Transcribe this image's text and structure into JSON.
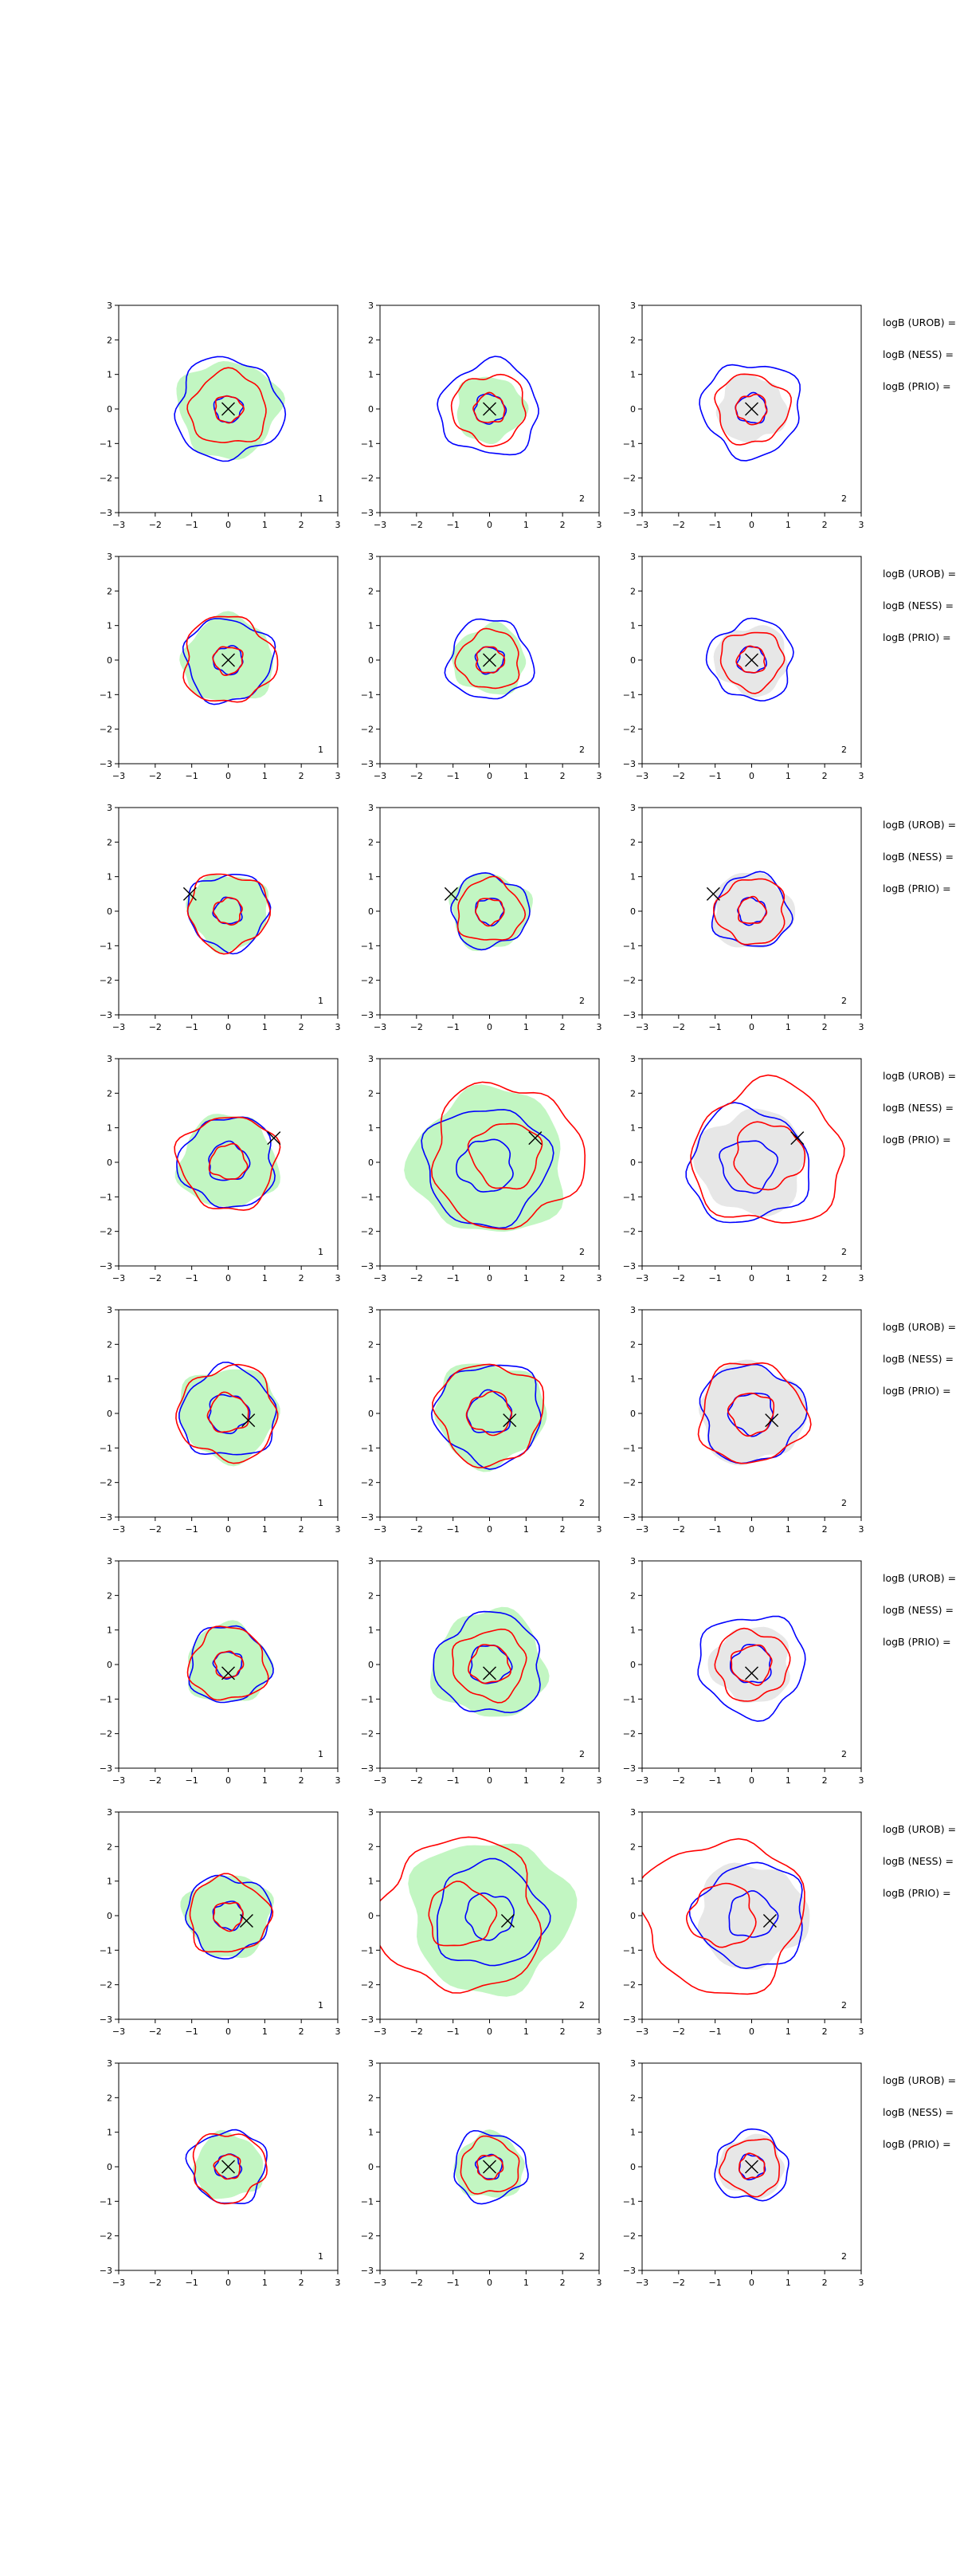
{
  "colors": {
    "blue": "#0000ff",
    "red": "#ff0000",
    "green_fill": "#90ee90",
    "grey_fill": "#d3d3d3",
    "marker": "#000000"
  },
  "side_labels": [
    "logB (UROB) =",
    "logB (NESS) =",
    "logB (PRIO) ="
  ],
  "chart_data": {
    "type": "contour-grid",
    "rows": 8,
    "cols": 3,
    "xlim": [
      -3,
      3
    ],
    "ylim": [
      -3,
      3
    ],
    "xticks": [
      -3,
      -2,
      -1,
      0,
      1,
      2,
      3
    ],
    "yticks": [
      -3,
      -2,
      -1,
      0,
      1,
      2,
      3
    ],
    "column_fill": [
      "green",
      "green",
      "grey"
    ],
    "panel_labels": [
      "1",
      "2",
      "2"
    ],
    "rows_data": [
      {
        "marker": [
          0.0,
          0.0
        ],
        "cols": [
          {
            "fill": 1.4,
            "blue": [
              0.38,
              1.45
            ],
            "red": [
              0.38,
              1.05
            ]
          },
          {
            "fill": 0.95,
            "blue": [
              0.42,
              1.35
            ],
            "red": [
              0.42,
              1.0
            ]
          },
          {
            "fill": 0.95,
            "blue": [
              0.42,
              1.35
            ],
            "red": [
              0.42,
              1.0
            ]
          }
        ]
      },
      {
        "marker": [
          0.0,
          0.0
        ],
        "cols": [
          {
            "fill": 1.25,
            "blue": [
              0.4,
              1.2
            ],
            "red": [
              0.4,
              1.25
            ]
          },
          {
            "fill": 1.0,
            "blue": [
              0.38,
              1.15
            ],
            "red": [
              0.38,
              0.85
            ]
          },
          {
            "fill": 1.0,
            "blue": [
              0.38,
              1.15
            ],
            "red": [
              0.38,
              0.85
            ]
          }
        ]
      },
      {
        "marker": [
          -1.05,
          0.5
        ],
        "cols": [
          {
            "fill": 1.1,
            "blue": [
              0.38,
              1.1
            ],
            "red": [
              0.38,
              1.1
            ]
          },
          {
            "fill": 1.1,
            "blue": [
              0.38,
              1.05
            ],
            "red": [
              0.38,
              0.9
            ]
          },
          {
            "fill": 1.1,
            "blue": [
              0.38,
              1.05
            ],
            "red": [
              0.38,
              0.95
            ]
          }
        ]
      },
      {
        "marker": [
          1.25,
          0.7
        ],
        "cols": [
          {
            "fill": 1.35,
            "blue": [
              0.55,
              1.3
            ],
            "red": [
              0.5,
              1.35
            ]
          },
          {
            "fill": 2.1,
            "blue": [
              0.75,
              1.7
            ],
            "red": [
              0.95,
              2.05
            ]
          },
          {
            "fill": 1.5,
            "blue": [
              0.75,
              1.65
            ],
            "red": [
              0.95,
              2.05
            ]
          }
        ]
      },
      {
        "marker": [
          0.55,
          -0.2
        ],
        "cols": [
          {
            "fill": 1.35,
            "blue": [
              0.55,
              1.3
            ],
            "red": [
              0.55,
              1.35
            ]
          },
          {
            "fill": 1.5,
            "blue": [
              0.6,
              1.45
            ],
            "red": [
              0.6,
              1.45
            ]
          },
          {
            "fill": 1.45,
            "blue": [
              0.6,
              1.4
            ],
            "red": [
              0.6,
              1.45
            ]
          }
        ]
      },
      {
        "marker": [
          0.0,
          -0.25
        ],
        "cols": [
          {
            "fill": 1.15,
            "blue": [
              0.38,
              1.1
            ],
            "red": [
              0.38,
              1.05
            ]
          },
          {
            "fill": 1.55,
            "blue": [
              0.55,
              1.45
            ],
            "red": [
              0.55,
              1.0
            ]
          },
          {
            "fill": 1.1,
            "blue": [
              0.55,
              1.45
            ],
            "red": [
              0.55,
              1.0
            ]
          }
        ]
      },
      {
        "marker": [
          0.5,
          -0.15
        ],
        "cols": [
          {
            "fill": 1.2,
            "blue": [
              0.4,
              1.15
            ],
            "red": [
              0.4,
              1.1
            ]
          },
          {
            "fill": 2.2,
            "blue": [
              0.65,
              1.5
            ],
            "red": [
              0.9,
              2.2
            ]
          },
          {
            "fill": 1.5,
            "blue": [
              0.65,
              1.5
            ],
            "red": [
              0.9,
              2.2
            ]
          }
        ]
      },
      {
        "marker": [
          0.0,
          0.0
        ],
        "cols": [
          {
            "fill": 0.95,
            "blue": [
              0.35,
              1.05
            ],
            "red": [
              0.35,
              1.0
            ]
          },
          {
            "fill": 0.95,
            "blue": [
              0.35,
              1.0
            ],
            "red": [
              0.35,
              0.8
            ]
          },
          {
            "fill": 0.9,
            "blue": [
              0.35,
              1.0
            ],
            "red": [
              0.35,
              0.8
            ]
          }
        ]
      }
    ]
  }
}
